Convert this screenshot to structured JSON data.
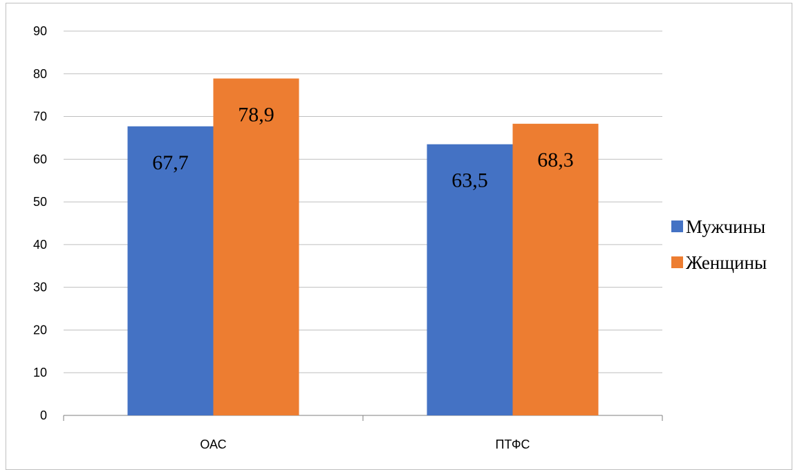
{
  "chart_data": {
    "type": "bar",
    "categories": [
      "ОАС",
      "ПТФС"
    ],
    "series": [
      {
        "name": "Мужчины",
        "values": [
          67.7,
          63.5
        ],
        "labels": [
          "67,7",
          "63,5"
        ],
        "color": "#4472c4"
      },
      {
        "name": "Женщины",
        "values": [
          78.9,
          68.3
        ],
        "labels": [
          "78,9",
          "68,3"
        ],
        "color": "#ed7d31"
      }
    ],
    "ylim": [
      0,
      90
    ],
    "yticks": [
      0,
      10,
      20,
      30,
      40,
      50,
      60,
      70,
      80,
      90
    ],
    "grid": true,
    "legend": "right",
    "gridColor": "#bfbfbf",
    "axisColor": "#7f7f7f"
  }
}
